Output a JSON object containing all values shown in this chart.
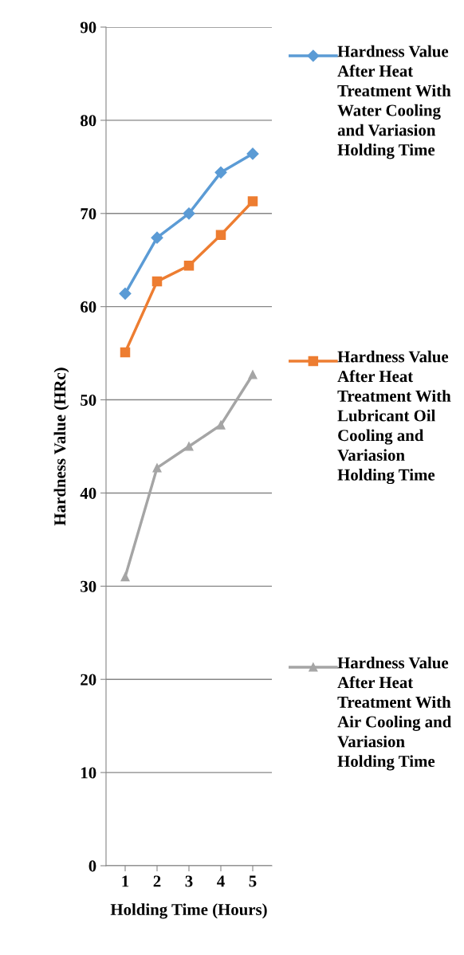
{
  "chart_data": {
    "type": "line",
    "xlabel": "Holding Time (Hours)",
    "ylabel": "Hardness Value (HRc)",
    "categories": [
      "1",
      "2",
      "3",
      "4",
      "5"
    ],
    "series": [
      {
        "name": "Hardness Value After Heat Treatment With Water Cooling and Variasion Holding Time",
        "color": "#5b9bd5",
        "marker": "diamond",
        "values": [
          61.4,
          67.4,
          70.0,
          74.4,
          76.4
        ]
      },
      {
        "name": "Hardness Value After Heat Treatment With Lubricant Oil Cooling and Variasion Holding Time",
        "color": "#ed7d31",
        "marker": "square",
        "values": [
          55.1,
          62.7,
          64.4,
          67.7,
          71.3
        ]
      },
      {
        "name": "Hardness Value After Heat Treatment With Air Cooling and Variasion Holding Time",
        "color": "#a5a5a5",
        "marker": "triangle",
        "values": [
          31.0,
          42.7,
          45.0,
          47.3,
          52.7
        ]
      }
    ],
    "ylim": [
      0,
      90
    ],
    "yticks": [
      0,
      10,
      20,
      30,
      40,
      50,
      60,
      70,
      80,
      90
    ],
    "grid": "y",
    "legend": "right",
    "line_style": "solid"
  }
}
